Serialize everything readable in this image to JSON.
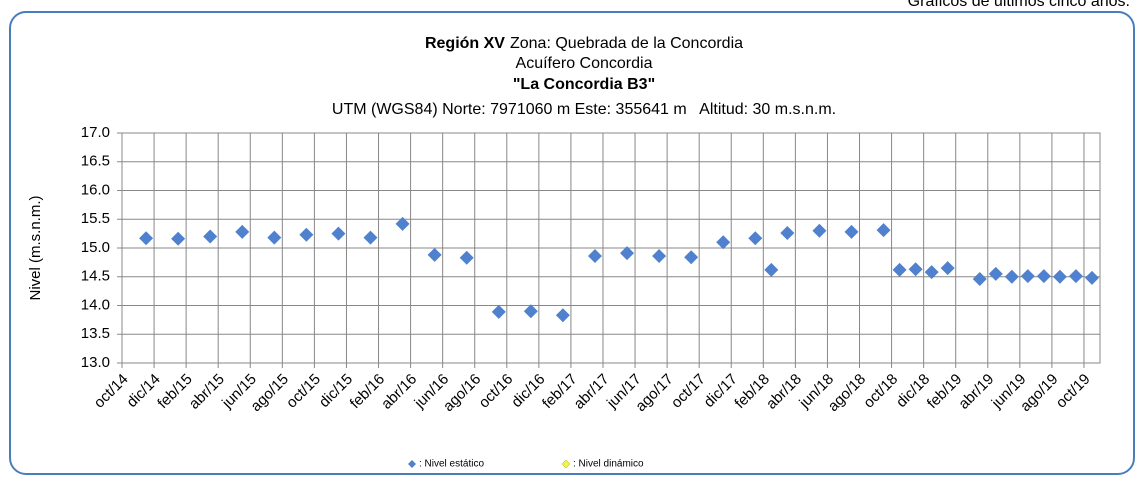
{
  "header_note": "Gráficos de últimos cinco años.",
  "chart_data": {
    "type": "scatter",
    "title": [
      {
        "bold": "Región XV",
        "text": "Zona: Quebrada de la Concordia"
      },
      {
        "text": "Acuífero Concordia"
      },
      {
        "bold": "\"La Concordia B3\""
      },
      {
        "text": "UTM (WGS84) Norte: 7971060 m Este: 355641 m   Altitud: 30 m.s.n.m."
      }
    ],
    "y_label": "Nivel (m.s.n.m.)",
    "ylim": [
      13,
      17
    ],
    "yticks": [
      {
        "value": 13,
        "label": "13.0"
      },
      {
        "value": 13.5,
        "label": "13.5"
      },
      {
        "value": 14,
        "label": "14.0"
      },
      {
        "value": 14.5,
        "label": "14.5"
      },
      {
        "value": 15,
        "label": "15.0"
      },
      {
        "value": 15.5,
        "label": "15.5"
      },
      {
        "value": 16,
        "label": "16.0"
      },
      {
        "value": 16.5,
        "label": "16.5"
      },
      {
        "value": 17,
        "label": "17.0"
      }
    ],
    "xlim": [
      "2014-10",
      "2019-11"
    ],
    "xticks": [
      {
        "value": "2014-10",
        "label": "oct/14"
      },
      {
        "value": "2014-12",
        "label": "dic/14"
      },
      {
        "value": "2015-02",
        "label": "feb/15"
      },
      {
        "value": "2015-04",
        "label": "abr/15"
      },
      {
        "value": "2015-06",
        "label": "jun/15"
      },
      {
        "value": "2015-08",
        "label": "ago/15"
      },
      {
        "value": "2015-10",
        "label": "oct/15"
      },
      {
        "value": "2015-12",
        "label": "dic/15"
      },
      {
        "value": "2016-02",
        "label": "feb/16"
      },
      {
        "value": "2016-04",
        "label": "abr/16"
      },
      {
        "value": "2016-06",
        "label": "jun/16"
      },
      {
        "value": "2016-08",
        "label": "ago/16"
      },
      {
        "value": "2016-10",
        "label": "oct/16"
      },
      {
        "value": "2016-12",
        "label": "dic/16"
      },
      {
        "value": "2017-02",
        "label": "feb/17"
      },
      {
        "value": "2017-04",
        "label": "abr/17"
      },
      {
        "value": "2017-06",
        "label": "jun/17"
      },
      {
        "value": "2017-08",
        "label": "ago/17"
      },
      {
        "value": "2017-10",
        "label": "oct/17"
      },
      {
        "value": "2017-12",
        "label": "dic/17"
      },
      {
        "value": "2018-02",
        "label": "feb/18"
      },
      {
        "value": "2018-04",
        "label": "abr/18"
      },
      {
        "value": "2018-06",
        "label": "jun/18"
      },
      {
        "value": "2018-08",
        "label": "ago/18"
      },
      {
        "value": "2018-10",
        "label": "oct/18"
      },
      {
        "value": "2018-12",
        "label": "dic/18"
      },
      {
        "value": "2019-02",
        "label": "feb/19"
      },
      {
        "value": "2019-04",
        "label": "abr/19"
      },
      {
        "value": "2019-06",
        "label": "jun/19"
      },
      {
        "value": "2019-08",
        "label": "ago/19"
      },
      {
        "value": "2019-10",
        "label": "oct/19"
      }
    ],
    "grid": true,
    "series": [
      {
        "name": ": Nivel estático",
        "color": "#4f81cf",
        "x": [
          "2014-11",
          "2015-01",
          "2015-03",
          "2015-05",
          "2015-07",
          "2015-09",
          "2015-11",
          "2016-01",
          "2016-03",
          "2016-05",
          "2016-07",
          "2016-09",
          "2016-11",
          "2017-01",
          "2017-03",
          "2017-05",
          "2017-07",
          "2017-09",
          "2017-11",
          "2018-01",
          "2018-02",
          "2018-03",
          "2018-05",
          "2018-07",
          "2018-09",
          "2018-10",
          "2018-11",
          "2018-12",
          "2019-01",
          "2019-03",
          "2019-04",
          "2019-05",
          "2019-06",
          "2019-07",
          "2019-08",
          "2019-09",
          "2019-10"
        ],
        "values": [
          15.17,
          15.16,
          15.2,
          15.28,
          15.18,
          15.23,
          15.25,
          15.18,
          15.42,
          14.88,
          14.83,
          13.89,
          13.9,
          13.83,
          14.86,
          14.91,
          14.86,
          14.84,
          15.1,
          15.17,
          14.62,
          15.26,
          15.3,
          15.28,
          15.31,
          14.62,
          14.63,
          14.58,
          14.65,
          14.46,
          14.55,
          14.5,
          14.51,
          14.51,
          14.5,
          14.51,
          14.48
        ]
      },
      {
        "name": ": Nivel dinámico",
        "color": "#f2f24a",
        "x": [],
        "values": []
      }
    ]
  }
}
